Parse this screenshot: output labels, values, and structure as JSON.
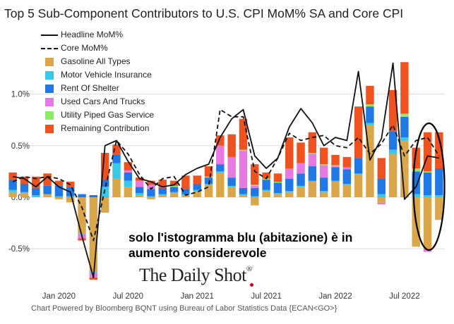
{
  "title": "Top 5 Sub-Component Contributors to U.S. CPI MoM% SA and Core CPI",
  "annotation_line1": "solo l'istogramma blu (abitazione) è in",
  "annotation_line2": "aumento considerevole",
  "brand": "The Daily Shot",
  "brand_mark": "®",
  "footer": "Chart Powered by Bloomberg BQNT using Bureau of Labor Statistics Data   {ECAN<GO>}",
  "colors": {
    "gasoline": "#d9a649",
    "motor_vehicle_insurance": "#38c8ea",
    "rent_of_shelter": "#1f78e6",
    "used_cars": "#e779e2",
    "utility_gas": "#8ceb6b",
    "remaining": "#f0521f",
    "annotation_ellipse": "#000000"
  },
  "chart_data": {
    "type": "bar",
    "stacked": true,
    "x_start": "2019-09",
    "x_ticks": [
      "Jan 2020",
      "Jul 2020",
      "Jan 2021",
      "Jul 2021",
      "Jan 2022",
      "Jul 2022"
    ],
    "y_ticks": [
      "1.0%",
      "0.5%",
      "0.0%",
      "-0.5%"
    ],
    "ylim": [
      -0.82,
      1.38
    ],
    "grid": true,
    "legend": "top-left",
    "series": [
      {
        "name": "Gasoline All Types",
        "key": "gasoline",
        "values": [
          0.05,
          0.04,
          0.0,
          0.03,
          -0.02,
          -0.05,
          -0.35,
          -0.72,
          -0.15,
          0.18,
          0.1,
          0.02,
          -0.02,
          0.02,
          0.04,
          0.02,
          0.06,
          0.12,
          0.24,
          0.1,
          0.02,
          -0.08,
          0.06,
          0.03,
          0.05,
          0.1,
          0.15,
          0.05,
          0.15,
          0.12,
          0.22,
          0.7,
          -0.05,
          0.42,
          0.55,
          -0.48,
          -0.5,
          -0.22
        ]
      },
      {
        "name": "Motor Vehicle Insurance",
        "key": "motor_vehicle_insurance",
        "values": [
          0.02,
          0.01,
          0.02,
          0.0,
          0.01,
          0.01,
          -0.01,
          -0.01,
          0.1,
          0.15,
          0.06,
          0.02,
          0.01,
          0.01,
          0.01,
          0.01,
          0.01,
          0.01,
          0.01,
          0.01,
          0.01,
          0.01,
          0.01,
          0.01,
          0.01,
          0.01,
          0.01,
          0.01,
          0.01,
          0.01,
          0.01,
          0.02,
          0.03,
          0.04,
          0.03,
          0.03,
          0.02,
          0.02
        ]
      },
      {
        "name": "Rent Of Shelter",
        "key": "rent_of_shelter",
        "values": [
          0.1,
          0.08,
          0.07,
          0.08,
          0.1,
          0.09,
          0.03,
          0.02,
          0.07,
          0.08,
          0.08,
          0.06,
          0.07,
          0.06,
          0.05,
          0.05,
          0.06,
          0.06,
          0.07,
          0.08,
          0.06,
          0.08,
          0.1,
          0.1,
          0.12,
          0.12,
          0.14,
          0.13,
          0.13,
          0.14,
          0.15,
          0.16,
          0.15,
          0.18,
          0.2,
          0.22,
          0.22,
          0.26
        ]
      },
      {
        "name": "Used Cars And Trucks",
        "key": "used_cars",
        "values": [
          0.0,
          0.0,
          0.0,
          0.0,
          0.0,
          0.0,
          -0.04,
          -0.05,
          0.0,
          0.0,
          0.02,
          0.06,
          0.04,
          0.0,
          0.0,
          0.0,
          0.0,
          0.0,
          0.18,
          0.2,
          0.36,
          0.02,
          0.0,
          0.0,
          0.1,
          0.1,
          0.12,
          0.12,
          0.01,
          0.02,
          0.0,
          0.0,
          -0.02,
          0.0,
          0.0,
          0.0,
          -0.03,
          0.0
        ]
      },
      {
        "name": "Utility Piped Gas Service",
        "key": "utility_gas",
        "values": [
          0.0,
          0.0,
          0.0,
          0.0,
          0.0,
          0.0,
          0.0,
          0.0,
          0.0,
          0.0,
          0.0,
          0.0,
          0.0,
          0.0,
          0.01,
          0.0,
          0.0,
          0.01,
          0.0,
          0.0,
          0.01,
          0.01,
          0.01,
          0.01,
          0.0,
          0.0,
          0.01,
          0.01,
          0.01,
          0.0,
          0.0,
          0.02,
          0.0,
          0.0,
          0.03,
          0.03,
          0.01,
          0.0
        ]
      },
      {
        "name": "Remaining Contribution",
        "key": "remaining",
        "values": [
          0.07,
          0.07,
          0.11,
          0.12,
          0.05,
          0.05,
          -0.02,
          -0.02,
          0.26,
          0.1,
          0.08,
          0.03,
          0.04,
          0.08,
          0.05,
          0.13,
          0.08,
          0.1,
          0.1,
          0.22,
          0.3,
          0.2,
          0.06,
          0.08,
          0.3,
          0.2,
          0.2,
          0.16,
          0.1,
          0.1,
          0.5,
          0.18,
          0.2,
          0.4,
          0.5,
          0.2,
          0.38,
          0.35
        ]
      }
    ],
    "lines": [
      {
        "name": "Headline MoM%",
        "key": "headline",
        "style": "solid",
        "values": [
          0.2,
          0.18,
          0.1,
          0.2,
          0.1,
          0.05,
          -0.38,
          -0.78,
          0.5,
          0.55,
          0.35,
          0.18,
          0.15,
          0.1,
          0.12,
          0.22,
          0.28,
          0.32,
          0.58,
          0.76,
          0.85,
          0.4,
          0.28,
          0.38,
          0.68,
          0.86,
          0.72,
          0.5,
          0.58,
          0.55,
          1.22,
          0.36,
          0.57,
          1.3,
          -0.02,
          0.1,
          0.4,
          0.38
        ]
      },
      {
        "name": "Core MoM%",
        "key": "core",
        "style": "dashed",
        "values": [
          0.15,
          0.2,
          0.18,
          0.2,
          0.18,
          0.12,
          -0.1,
          -0.42,
          0.08,
          0.55,
          0.42,
          0.22,
          0.08,
          0.18,
          0.2,
          0.02,
          0.05,
          0.1,
          0.85,
          0.78,
          0.78,
          0.25,
          0.18,
          0.38,
          0.62,
          0.55,
          0.58,
          0.6,
          0.5,
          0.48,
          0.58,
          0.42,
          0.52,
          0.7,
          0.4,
          0.55,
          0.58,
          0.4
        ]
      }
    ]
  }
}
